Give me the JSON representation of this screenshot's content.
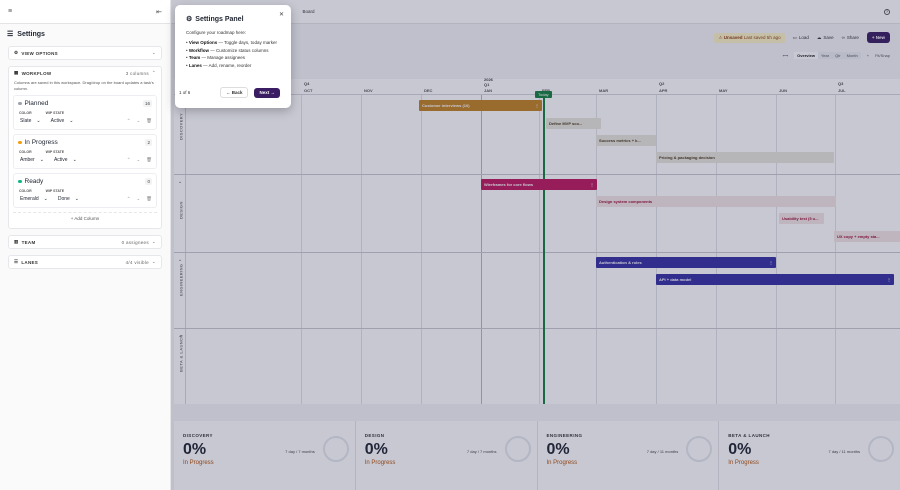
{
  "sidebar": {
    "title": "Settings",
    "view_options": {
      "label": "VIEW OPTIONS"
    },
    "workflow": {
      "label": "WORKFLOW",
      "count": "3 columns",
      "description": "Columns are saved in this workspace. Drag/drop on the board updates a task's column.",
      "color_label": "COLOR",
      "state_label": "WIP STATE",
      "columns": [
        {
          "name": "Planned",
          "count": "16",
          "color_hex": "#9ca3af",
          "color": "Slate",
          "state": "Active"
        },
        {
          "name": "In Progress",
          "count": "2",
          "color_hex": "#f59e0b",
          "color": "Amber",
          "state": "Active"
        },
        {
          "name": "Ready",
          "count": "0",
          "color_hex": "#10b981",
          "color": "Emerald",
          "state": "Done"
        }
      ],
      "add_column": "+ Add Column"
    },
    "team": {
      "label": "TEAM",
      "count": "0 assignees"
    },
    "lanes": {
      "label": "LANES",
      "count": "4/4 visible"
    }
  },
  "topbar": {
    "tabs": [
      "Lab",
      "Board"
    ]
  },
  "toolbar": {
    "unsaved": "Unsaved",
    "unsaved_note": "Last saved 5h ago",
    "load": "Load",
    "save": "Save",
    "share": "Share",
    "new": "+ New"
  },
  "viewbar": {
    "overview": "Overview",
    "zoom": [
      "Year",
      "Qtr",
      "Month"
    ],
    "active_zoom": "Overview",
    "fit": "Fit/Snap"
  },
  "timeline": {
    "years": [
      {
        "label": "",
        "months": []
      }
    ],
    "ticks": [
      {
        "q": "",
        "m": "SEP"
      },
      {
        "q": "Q4",
        "m": "OCT"
      },
      {
        "q": "",
        "m": "NOV"
      },
      {
        "q": "",
        "m": "DEC"
      },
      {
        "q": "2026\nQ1",
        "m": "JAN"
      },
      {
        "q": "",
        "m": "FEB"
      },
      {
        "q": "",
        "m": "MAR"
      },
      {
        "q": "Q2",
        "m": "APR"
      },
      {
        "q": "",
        "m": "MAY"
      },
      {
        "q": "",
        "m": "JUN"
      },
      {
        "q": "Q3",
        "m": "JUL"
      }
    ],
    "today_label": "Today",
    "lanes": [
      {
        "name": "DISCOVERY"
      },
      {
        "name": "DESIGN"
      },
      {
        "name": "ENGINEERING"
      },
      {
        "name": "BETA & LAUNCH"
      }
    ],
    "bars": [
      {
        "label": "Customer interviews (10)",
        "lane": 0,
        "style": "solid",
        "color": "#c2821f"
      },
      {
        "label": "Define MVP sco...",
        "lane": 0,
        "style": "light"
      },
      {
        "label": "Success metrics + k...",
        "lane": 0,
        "style": "light"
      },
      {
        "label": "Pricing & packaging decision",
        "lane": 0,
        "style": "light"
      },
      {
        "label": "Wireframes for core flows",
        "lane": 1,
        "style": "solid",
        "color": "#be185d"
      },
      {
        "label": "Design system components",
        "lane": 1,
        "style": "red"
      },
      {
        "label": "Usability test (5 u...",
        "lane": 1,
        "style": "red"
      },
      {
        "label": "UX copy + empty sta...",
        "lane": 1,
        "style": "red"
      },
      {
        "label": "Authentication & roles",
        "lane": 2,
        "style": "solid",
        "color": "#3730a3"
      },
      {
        "label": "API + data model",
        "lane": 2,
        "style": "solid",
        "color": "#3730a3"
      }
    ]
  },
  "summary": [
    {
      "title": "DISCOVERY",
      "pct": "0%",
      "status": "In Progress",
      "dur": "7 day / 7 months"
    },
    {
      "title": "DESIGN",
      "pct": "0%",
      "status": "In Progress",
      "dur": "7 day / 7 months"
    },
    {
      "title": "ENGINEERING",
      "pct": "0%",
      "status": "In Progress",
      "dur": "7 day / 11 months"
    },
    {
      "title": "BETA & LAUNCH",
      "pct": "0%",
      "status": "In Progress",
      "dur": "7 day / 11 months"
    }
  ],
  "popover": {
    "title": "Settings Panel",
    "intro": "Configure your roadmap here:",
    "items": [
      {
        "k": "View Options",
        "v": " — Toggle days, today marker"
      },
      {
        "k": "Workflow",
        "v": " — Customize status columns"
      },
      {
        "k": "Team",
        "v": " — Manage assignees"
      },
      {
        "k": "Lanes",
        "v": " — Add, rename, reorder"
      }
    ],
    "step": "1 of 6",
    "back": "← Back",
    "next": "Next →"
  }
}
